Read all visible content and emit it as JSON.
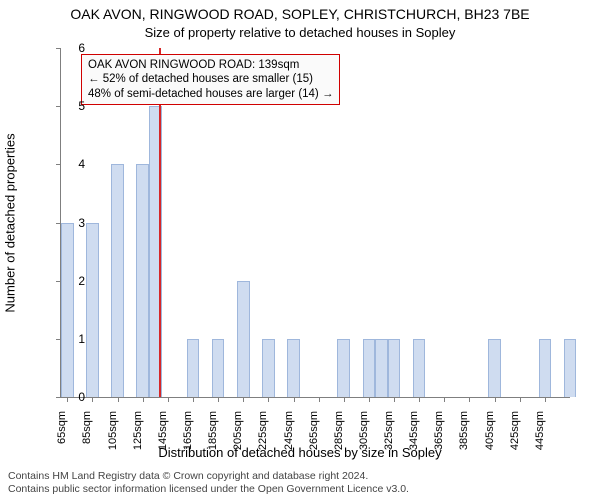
{
  "chart": {
    "type": "histogram",
    "title": "OAK AVON, RINGWOOD ROAD, SOPLEY, CHRISTCHURCH, BH23 7BE",
    "subtitle": "Size of property relative to detached houses in Sopley",
    "ylabel": "Number of detached properties",
    "xlabel": "Distribution of detached houses by size in Sopley",
    "background_color": "#ffffff",
    "axis_color": "#7f7f7f",
    "text_color": "#000000",
    "title_fontsize": 14,
    "subtitle_fontsize": 13,
    "label_fontsize": 13,
    "tick_fontsize": 12,
    "xtick_fontsize": 11,
    "bar_fill": "#cfdcf0",
    "bar_stroke": "#9fb7dc",
    "marker_color": "#d62728",
    "ylim": [
      0,
      6
    ],
    "ytick_step": 1,
    "x_start": 60,
    "x_end": 465,
    "bin_width": 10,
    "xtick_step": 20,
    "bins": [
      {
        "x": 60,
        "count": 3
      },
      {
        "x": 70,
        "count": 0
      },
      {
        "x": 80,
        "count": 3
      },
      {
        "x": 90,
        "count": 0
      },
      {
        "x": 100,
        "count": 4
      },
      {
        "x": 110,
        "count": 0
      },
      {
        "x": 120,
        "count": 4
      },
      {
        "x": 130,
        "count": 5
      },
      {
        "x": 140,
        "count": 0
      },
      {
        "x": 150,
        "count": 0
      },
      {
        "x": 160,
        "count": 1
      },
      {
        "x": 170,
        "count": 0
      },
      {
        "x": 180,
        "count": 1
      },
      {
        "x": 190,
        "count": 0
      },
      {
        "x": 200,
        "count": 2
      },
      {
        "x": 210,
        "count": 0
      },
      {
        "x": 220,
        "count": 1
      },
      {
        "x": 230,
        "count": 0
      },
      {
        "x": 240,
        "count": 1
      },
      {
        "x": 250,
        "count": 0
      },
      {
        "x": 260,
        "count": 0
      },
      {
        "x": 270,
        "count": 0
      },
      {
        "x": 280,
        "count": 1
      },
      {
        "x": 290,
        "count": 0
      },
      {
        "x": 300,
        "count": 1
      },
      {
        "x": 310,
        "count": 1
      },
      {
        "x": 320,
        "count": 1
      },
      {
        "x": 330,
        "count": 0
      },
      {
        "x": 340,
        "count": 1
      },
      {
        "x": 350,
        "count": 0
      },
      {
        "x": 360,
        "count": 0
      },
      {
        "x": 370,
        "count": 0
      },
      {
        "x": 380,
        "count": 0
      },
      {
        "x": 390,
        "count": 0
      },
      {
        "x": 400,
        "count": 1
      },
      {
        "x": 410,
        "count": 0
      },
      {
        "x": 420,
        "count": 0
      },
      {
        "x": 430,
        "count": 0
      },
      {
        "x": 440,
        "count": 1
      },
      {
        "x": 450,
        "count": 0
      },
      {
        "x": 460,
        "count": 1
      }
    ],
    "marker_x": 139,
    "annotation": {
      "line1": "OAK AVON RINGWOOD ROAD: 139sqm",
      "line2": "← 52% of detached houses are smaller (15)",
      "line3": "48% of semi-detached houses are larger (14) →",
      "box_border": "#d00000",
      "box_bg": "#fafafa",
      "font_size": 11.5
    },
    "xtick_suffix": "sqm"
  },
  "footer": {
    "line1": "Contains HM Land Registry data © Crown copyright and database right 2024.",
    "line2": "Contains public sector information licensed under the Open Government Licence v3.0.",
    "color": "#444444",
    "font_size": 10.5
  }
}
